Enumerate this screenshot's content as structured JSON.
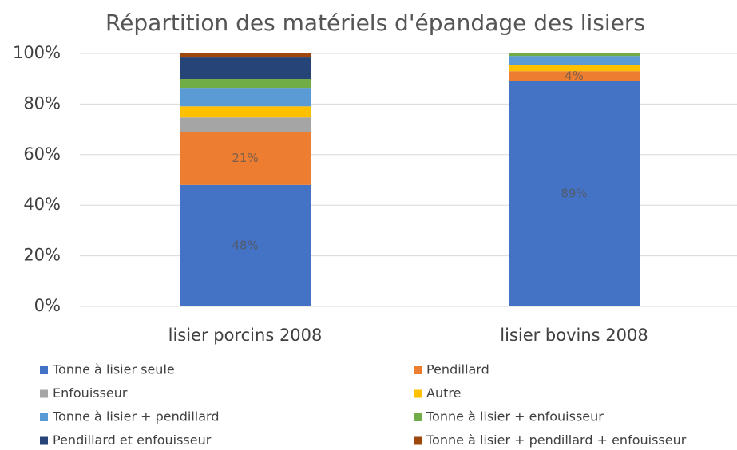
{
  "chart_data": {
    "type": "stacked_bar_percent",
    "title": "Répartition des matériels d'épandage des lisiers",
    "categories": [
      "lisier porcins 2008",
      "lisier bovins 2008"
    ],
    "series": [
      {
        "name": "Tonne à lisier seule",
        "color": "#4472c4",
        "values": [
          48,
          89
        ],
        "value_labels": [
          "48%",
          "89%"
        ]
      },
      {
        "name": "Pendillard",
        "color": "#ed7d31",
        "values": [
          21,
          4
        ],
        "value_labels": [
          "21%",
          "4%"
        ]
      },
      {
        "name": "Enfouisseur",
        "color": "#a5a5a5",
        "values": [
          5.7,
          0
        ]
      },
      {
        "name": "Autre",
        "color": "#ffc000",
        "values": [
          4.4,
          2.5
        ]
      },
      {
        "name": "Tonne à lisier + pendillard",
        "color": "#5b9bd5",
        "values": [
          7.3,
          3.5
        ]
      },
      {
        "name": "Tonne à lisier + enfouisseur",
        "color": "#70ad47",
        "values": [
          3.5,
          1
        ]
      },
      {
        "name": "Pendillard et enfouisseur",
        "color": "#264478",
        "values": [
          8.5,
          0
        ]
      },
      {
        "name": "Tonne à lisier + pendillard + enfouisseur",
        "color": "#9e480e",
        "values": [
          1.6,
          0
        ]
      }
    ],
    "ylim": [
      0,
      100
    ],
    "yticks": [
      {
        "value": 0,
        "label": "0%"
      },
      {
        "value": 20,
        "label": "20%"
      },
      {
        "value": 40,
        "label": "40%"
      },
      {
        "value": 60,
        "label": "60%"
      },
      {
        "value": 80,
        "label": "80%"
      },
      {
        "value": 100,
        "label": "100%"
      }
    ],
    "grid": true,
    "legend": "bottom"
  }
}
